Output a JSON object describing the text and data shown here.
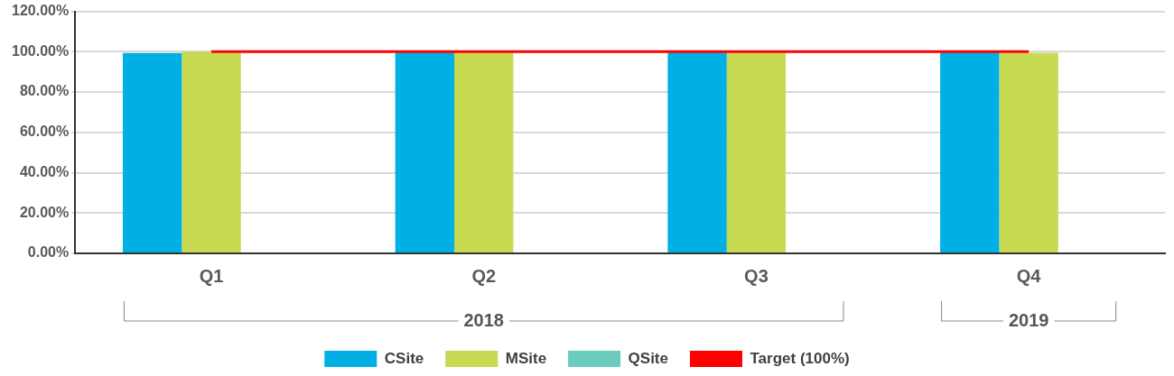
{
  "chart_data": {
    "type": "bar",
    "categories": [
      "Q1",
      "Q2",
      "Q3",
      "Q4"
    ],
    "series": [
      {
        "name": "CSite",
        "color": "#00b0e4",
        "values": [
          99.4,
          100,
          100,
          100
        ]
      },
      {
        "name": "MSite",
        "color": "#c8d952",
        "values": [
          100,
          100,
          100,
          99.5
        ]
      },
      {
        "name": "QSite",
        "color": "#6ccbbf",
        "values": [
          null,
          null,
          null,
          null
        ]
      },
      {
        "name": "Target (100%)",
        "type": "line",
        "color": "#ff0000",
        "values": [
          100,
          100,
          100,
          100
        ],
        "marker": "none"
      }
    ],
    "ylim": [
      0,
      120
    ],
    "yticks": [
      {
        "value": 0,
        "label": "0.00%"
      },
      {
        "value": 20,
        "label": "20.00%"
      },
      {
        "value": 40,
        "label": "40.00%"
      },
      {
        "value": 60,
        "label": "60.00%"
      },
      {
        "value": 80,
        "label": "80.00%"
      },
      {
        "value": 100,
        "label": "100.00%"
      },
      {
        "value": 120,
        "label": "120.00%"
      }
    ],
    "annotations": [
      "2018",
      "2019"
    ],
    "grid": "y",
    "legend": "bottom"
  }
}
